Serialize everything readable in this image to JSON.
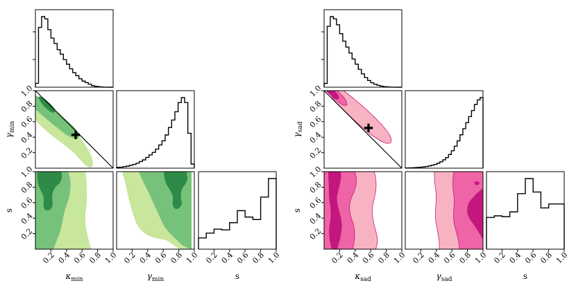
{
  "colors": {
    "green_dark": "#2e8b47",
    "green_mid": "#77c27a",
    "green_light": "#c8e69c",
    "pink_dark": "#c3177f",
    "pink_mid": "#ef64a6",
    "pink_light": "#f8b3c3",
    "axis": "#000000",
    "marker": "#000000"
  },
  "chart_data": [
    {
      "name": "min",
      "type": "corner",
      "palette": "green",
      "parameters": [
        {
          "key": "kappa",
          "label": "κ",
          "subscript": "min"
        },
        {
          "key": "gamma",
          "label": "γ",
          "subscript": "min"
        },
        {
          "key": "s",
          "label": "s",
          "subscript": ""
        }
      ],
      "tick_labels": [
        "0.2",
        "0.4",
        "0.6",
        "0.8",
        "1.0"
      ],
      "tick_values": [
        0.2,
        0.4,
        0.6,
        0.8,
        1.0
      ],
      "axis_range": [
        0,
        1
      ],
      "marker": {
        "kappa": 0.5,
        "gamma": 0.42
      },
      "diagonal_line": "gamma = 1 - kappa",
      "histograms": {
        "kappa": {
          "bin_width": 0.04,
          "values": [
            0.05,
            0.78,
            0.92,
            0.89,
            0.75,
            0.64,
            0.57,
            0.49,
            0.43,
            0.36,
            0.3,
            0.24,
            0.19,
            0.15,
            0.11,
            0.08,
            0.06,
            0.04,
            0.02,
            0.012,
            0.006,
            0.003,
            0.001,
            0,
            0
          ]
        },
        "gamma": {
          "bin_width": 0.04,
          "values": [
            0.01,
            0.012,
            0.018,
            0.025,
            0.035,
            0.045,
            0.06,
            0.08,
            0.1,
            0.13,
            0.16,
            0.19,
            0.23,
            0.28,
            0.33,
            0.4,
            0.49,
            0.58,
            0.68,
            0.79,
            0.85,
            0.79,
            0.42,
            0.05
          ]
        },
        "s": {
          "bin_width": 0.1,
          "values": [
            0.14,
            0.2,
            0.25,
            0.24,
            0.33,
            0.48,
            0.4,
            0.37,
            0.65,
            0.88
          ]
        }
      },
      "contour_levels": [
        "inner",
        "middle",
        "outer"
      ]
    },
    {
      "name": "sad",
      "type": "corner",
      "palette": "pink",
      "parameters": [
        {
          "key": "kappa",
          "label": "κ",
          "subscript": "sad"
        },
        {
          "key": "gamma",
          "label": "γ",
          "subscript": "sad"
        },
        {
          "key": "s",
          "label": "s",
          "subscript": ""
        }
      ],
      "tick_labels": [
        "0.2",
        "0.4",
        "0.6",
        "0.8",
        "1.0"
      ],
      "tick_values": [
        0.2,
        0.4,
        0.6,
        0.8,
        1.0
      ],
      "axis_range": [
        0,
        1
      ],
      "marker": {
        "kappa": 0.55,
        "gamma": 0.5
      },
      "diagonal_line": "gamma = 1 - kappa",
      "histograms": {
        "kappa": {
          "bin_width": 0.04,
          "values": [
            0.05,
            0.82,
            0.95,
            0.92,
            0.84,
            0.72,
            0.62,
            0.54,
            0.46,
            0.38,
            0.31,
            0.24,
            0.18,
            0.13,
            0.09,
            0.06,
            0.04,
            0.025,
            0.015,
            0.008,
            0.004,
            0.002,
            0.001,
            0,
            0
          ]
        },
        "gamma": {
          "bin_width": 0.04,
          "values": [
            0.003,
            0.004,
            0.005,
            0.007,
            0.01,
            0.013,
            0.017,
            0.022,
            0.03,
            0.04,
            0.05,
            0.065,
            0.085,
            0.11,
            0.14,
            0.18,
            0.23,
            0.29,
            0.36,
            0.44,
            0.52,
            0.6,
            0.68,
            0.76,
            0.84,
            0.9,
            0.93
          ]
        },
        "s": {
          "bin_width": 0.1,
          "values": [
            0.4,
            0.42,
            0.41,
            0.47,
            0.7,
            0.89,
            0.72,
            0.52,
            0.57,
            0.57
          ]
        }
      },
      "contour_levels": [
        "inner",
        "middle",
        "outer"
      ]
    }
  ]
}
